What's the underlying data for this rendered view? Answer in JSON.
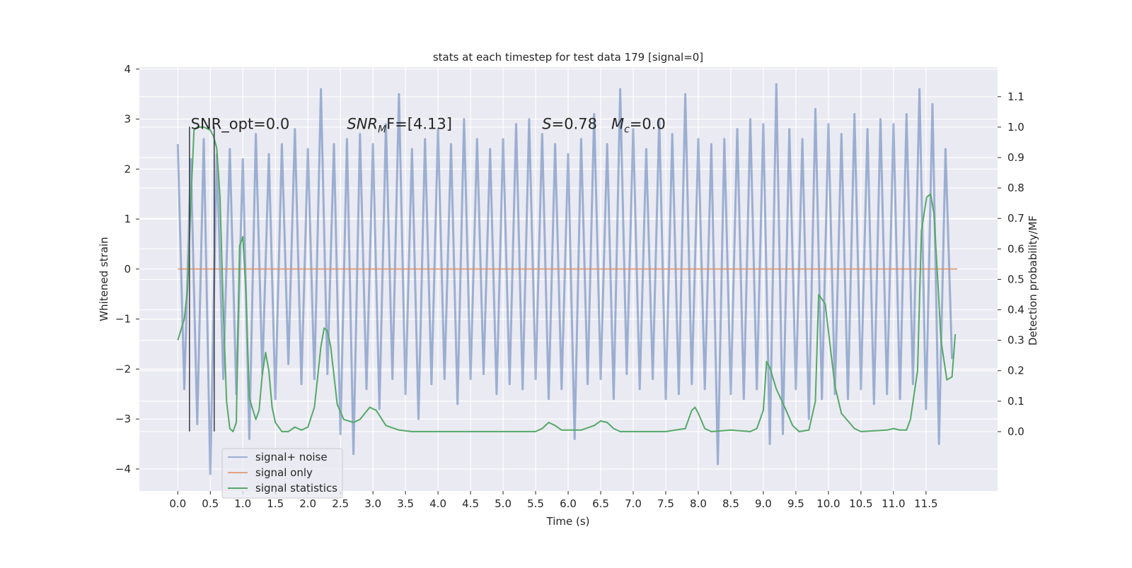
{
  "chart_data": {
    "type": "line",
    "title": "stats at each timestep for test data 179 [signal=0]",
    "xlabel": "Time (s)",
    "ylabel": "Whitened strain",
    "y2label": "Detection probability/MF",
    "xlim": [
      -0.59,
      12.6
    ],
    "ylim": [
      -4.44,
      4.04
    ],
    "y2lim": [
      -0.195,
      1.197
    ],
    "xticks": [
      {
        "value": 0,
        "label": "0.0"
      },
      0.5,
      {
        "value": 1,
        "label": "1.0"
      },
      1.5,
      {
        "value": 2,
        "label": "2.0"
      },
      2.5,
      {
        "value": 3,
        "label": "3.0"
      },
      3.5,
      {
        "value": 4,
        "label": "4.0"
      },
      4.5,
      {
        "value": 5,
        "label": "5.0"
      },
      5.5,
      {
        "value": 6,
        "label": "6.0"
      },
      6.5,
      {
        "value": 7,
        "label": "7.0"
      },
      7.5,
      {
        "value": 8,
        "label": "8.0"
      },
      8.5,
      {
        "value": 9,
        "label": "9.0"
      },
      9.5,
      {
        "value": 10,
        "label": "10.0"
      },
      10.5,
      {
        "value": 11,
        "label": "11.0"
      },
      11.5
    ],
    "yticks": [
      {
        "value": -4,
        "label": "−4"
      },
      {
        "value": -3,
        "label": "−3"
      },
      {
        "value": -2,
        "label": "−2"
      },
      {
        "value": -1,
        "label": "−1"
      },
      0,
      1,
      2,
      3,
      4
    ],
    "y2ticks": [
      {
        "value": 0,
        "label": "0.0"
      },
      0.1,
      0.2,
      0.3,
      0.4,
      0.5,
      0.6,
      0.7,
      0.8,
      0.9,
      {
        "value": 1,
        "label": "1.0"
      },
      1.1
    ],
    "grid": true,
    "legend": "lower left",
    "series": [
      {
        "name": "signal+ noise",
        "color": "#4c72b0",
        "opacity": 0.5,
        "x": [
          0.0,
          0.1,
          0.2,
          0.3,
          0.4,
          0.5,
          0.6,
          0.7,
          0.8,
          0.9,
          1.0,
          1.1,
          1.2,
          1.3,
          1.4,
          1.5,
          1.6,
          1.7,
          1.8,
          1.9,
          2.0,
          2.1,
          2.2,
          2.3,
          2.4,
          2.5,
          2.6,
          2.7,
          2.8,
          2.9,
          3.0,
          3.1,
          3.2,
          3.3,
          3.4,
          3.5,
          3.6,
          3.7,
          3.8,
          3.9,
          4.0,
          4.1,
          4.2,
          4.3,
          4.4,
          4.5,
          4.6,
          4.7,
          4.8,
          4.9,
          5.0,
          5.1,
          5.2,
          5.3,
          5.4,
          5.5,
          5.6,
          5.7,
          5.8,
          5.9,
          6.0,
          6.1,
          6.2,
          6.3,
          6.4,
          6.5,
          6.6,
          6.7,
          6.8,
          6.9,
          7.0,
          7.1,
          7.2,
          7.3,
          7.4,
          7.5,
          7.6,
          7.7,
          7.8,
          7.9,
          8.0,
          8.1,
          8.2,
          8.3,
          8.4,
          8.5,
          8.6,
          8.7,
          8.8,
          8.9,
          9.0,
          9.1,
          9.2,
          9.3,
          9.4,
          9.5,
          9.6,
          9.7,
          9.8,
          9.9,
          10.0,
          10.1,
          10.2,
          10.3,
          10.4,
          10.5,
          10.6,
          10.7,
          10.8,
          10.9,
          11.0,
          11.1,
          11.2,
          11.3,
          11.4,
          11.5,
          11.6,
          11.7,
          11.8,
          11.9
        ],
        "values": [
          2.5,
          -2.4,
          2.2,
          -3.1,
          2.6,
          -4.1,
          2.3,
          -2.2,
          2.4,
          -2.5,
          2.2,
          -3.4,
          2.7,
          -2.1,
          2.3,
          -2.6,
          2.5,
          -1.9,
          2.8,
          -2.3,
          2.4,
          -2.2,
          3.6,
          -2.1,
          2.5,
          -3.3,
          2.6,
          -3.7,
          2.7,
          -2.4,
          2.5,
          -2.8,
          2.9,
          -2.2,
          3.5,
          -2.5,
          2.4,
          -3.0,
          2.6,
          -2.3,
          2.8,
          -2.2,
          2.5,
          -2.7,
          3.0,
          -2.2,
          2.6,
          -2.1,
          2.4,
          -2.5,
          2.6,
          -2.3,
          2.9,
          -2.4,
          3.0,
          -2.2,
          2.7,
          -2.6,
          2.5,
          -2.4,
          2.3,
          -3.4,
          2.6,
          -2.3,
          3.1,
          -2.2,
          2.5,
          -2.6,
          3.6,
          -2.1,
          2.8,
          -2.4,
          2.4,
          -2.2,
          3.0,
          -2.6,
          2.7,
          -2.5,
          3.5,
          -2.3,
          2.6,
          -2.4,
          2.5,
          -3.9,
          2.6,
          -2.5,
          2.8,
          -2.6,
          3.0,
          -2.4,
          2.9,
          -3.5,
          3.7,
          -3.3,
          2.8,
          -2.4,
          2.6,
          -3.0,
          3.2,
          -2.6,
          2.9,
          -2.5,
          2.7,
          -2.6,
          3.1,
          -2.4,
          2.8,
          -2.7,
          3.0,
          -2.5,
          2.9,
          -2.6,
          3.1,
          -2.3,
          3.6,
          -2.8,
          3.3,
          -3.5,
          2.4,
          -1.8
        ]
      },
      {
        "name": "signal only",
        "color": "#dd8452",
        "opacity": 0.7,
        "x": [
          0.0,
          11.98
        ],
        "values": [
          0,
          0
        ]
      },
      {
        "name": "signal statistics",
        "color": "#55a868",
        "opacity": 1,
        "axis": "y2",
        "x": [
          0,
          0.1,
          0.15,
          0.2,
          0.25,
          0.3,
          0.4,
          0.5,
          0.55,
          0.6,
          0.65,
          0.7,
          0.75,
          0.8,
          0.85,
          0.9,
          0.95,
          1.0,
          1.05,
          1.1,
          1.2,
          1.25,
          1.3,
          1.35,
          1.4,
          1.45,
          1.5,
          1.6,
          1.7,
          1.8,
          1.9,
          2.0,
          2.1,
          2.2,
          2.25,
          2.3,
          2.35,
          2.45,
          2.55,
          2.7,
          2.8,
          2.95,
          3.05,
          3.2,
          3.4,
          3.6,
          4.0,
          5.5,
          5.6,
          5.7,
          5.8,
          5.9,
          6.2,
          6.4,
          6.5,
          6.6,
          6.7,
          6.8,
          7.5,
          7.8,
          7.9,
          7.95,
          8.0,
          8.1,
          8.2,
          8.5,
          8.8,
          8.9,
          9.0,
          9.05,
          9.1,
          9.2,
          9.35,
          9.45,
          9.55,
          9.7,
          9.8,
          9.85,
          9.95,
          10.1,
          10.2,
          10.4,
          10.5,
          10.9,
          11.0,
          11.1,
          11.2,
          11.26,
          11.37,
          11.43,
          11.51,
          11.57,
          11.62,
          11.68,
          11.73,
          11.82,
          11.9,
          11.95
        ],
        "values": [
          0.3,
          0.37,
          0.47,
          0.75,
          0.99,
          1.0,
          1.0,
          0.99,
          0.97,
          0.93,
          0.77,
          0.4,
          0.1,
          0.01,
          0.0,
          0.03,
          0.61,
          0.64,
          0.45,
          0.11,
          0.04,
          0.07,
          0.19,
          0.26,
          0.2,
          0.08,
          0.03,
          0.0,
          0.0,
          0.015,
          0.005,
          0.015,
          0.08,
          0.28,
          0.34,
          0.33,
          0.28,
          0.09,
          0.04,
          0.03,
          0.04,
          0.08,
          0.07,
          0.02,
          0.005,
          0.0,
          0.0,
          0.0,
          0.01,
          0.03,
          0.02,
          0.005,
          0.005,
          0.02,
          0.035,
          0.03,
          0.01,
          0.0,
          0.0,
          0.01,
          0.07,
          0.08,
          0.06,
          0.01,
          0.0,
          0.005,
          0.0,
          0.01,
          0.07,
          0.23,
          0.21,
          0.14,
          0.07,
          0.02,
          0.0,
          0.005,
          0.1,
          0.45,
          0.42,
          0.15,
          0.06,
          0.01,
          0.0,
          0.005,
          0.01,
          0.005,
          0.005,
          0.04,
          0.2,
          0.66,
          0.77,
          0.78,
          0.72,
          0.5,
          0.3,
          0.17,
          0.18,
          0.32
        ]
      }
    ],
    "markers": {
      "x": [
        0.18,
        0.56
      ],
      "ymin": -3.25,
      "ymax": 2.85,
      "color": "#3a3a4a"
    },
    "annotations": [
      {
        "x": 0.2,
        "y": 2.8,
        "parts": [
          {
            "text": "SNR_opt=0.0"
          }
        ]
      },
      {
        "x": 2.6,
        "y": 2.8,
        "parts": [
          {
            "text": "SNR",
            "style": "italic"
          },
          {
            "text": "M",
            "style": "italic-sub"
          },
          {
            "text": "F=[4.13]"
          }
        ]
      },
      {
        "x": 5.6,
        "y": 2.8,
        "parts": [
          {
            "text": "S",
            "style": "italic"
          },
          {
            "text": "=0.78   "
          },
          {
            "text": "M",
            "style": "italic"
          },
          {
            "text": "c",
            "style": "italic-sub"
          },
          {
            "text": "=0.0"
          }
        ]
      }
    ]
  }
}
